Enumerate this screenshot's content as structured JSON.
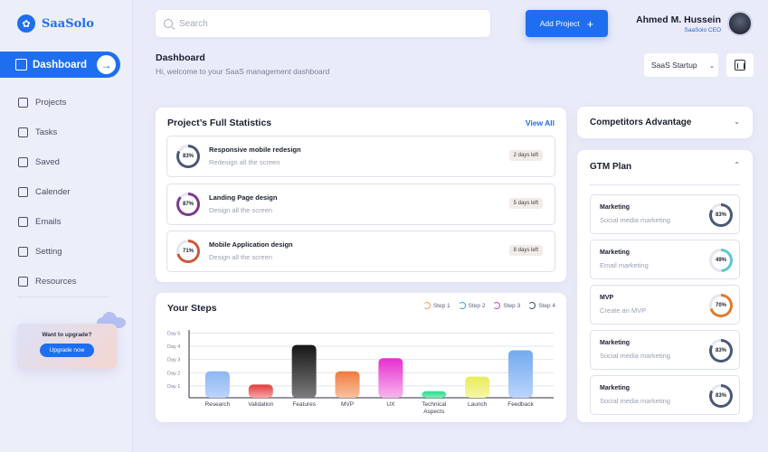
{
  "app": {
    "name": "SaaSolo"
  },
  "sidebar": {
    "active": "Dashboard",
    "items": [
      {
        "label": "Projects",
        "icon": "edit-icon"
      },
      {
        "label": "Tasks",
        "icon": "chart-icon"
      },
      {
        "label": "Saved",
        "icon": "document-icon"
      },
      {
        "label": "Calender",
        "icon": "calendar-icon"
      },
      {
        "label": "Emails",
        "icon": "mail-icon"
      },
      {
        "label": "Setting",
        "icon": "gear-icon"
      },
      {
        "label": "Resources",
        "icon": "check-icon"
      }
    ],
    "upgrade": {
      "title": "Want to upgrade?",
      "button": "Upgrade now"
    }
  },
  "header": {
    "search_placeholder": "Search",
    "add_project": "Add Project",
    "user_name": "Ahmed M. Hussein",
    "user_role": "SaaSolo CEO"
  },
  "page": {
    "title": "Dashboard",
    "subtitle": "Hi, welcome to your SaaS management dashboard",
    "select_value": "SaaS Startup"
  },
  "stats": {
    "title": "Project’s Full Statistics",
    "view_all": "View All",
    "projects": [
      {
        "name": "Responsive mobile redesign",
        "sub": "Redesign all the screen",
        "percent": "83%",
        "value": 83,
        "color": "#4a5876",
        "badge": "2 days left"
      },
      {
        "name": "Landing Page design",
        "sub": "Design all the screen",
        "percent": "87%",
        "value": 87,
        "color": "#7b3a8f",
        "badge": "5 days left"
      },
      {
        "name": "Mobile Application design",
        "sub": "Design all the screen",
        "percent": "71%",
        "value": 71,
        "color": "#c95a3a",
        "badge": "8 days left"
      }
    ]
  },
  "steps": {
    "title": "Your Steps",
    "legend": [
      {
        "label": "Step 1",
        "color": "#f2a44a"
      },
      {
        "label": "Step 2",
        "color": "#3aa0e0"
      },
      {
        "label": "Step 3",
        "color": "#d63ab8"
      },
      {
        "label": "Step 4",
        "color": "#3b4a6a"
      }
    ]
  },
  "chart_data": {
    "type": "bar",
    "categories": [
      "Research",
      "Validation",
      "Features",
      "MVP",
      "UX",
      "Technical Aspects",
      "Launch",
      "Feedback"
    ],
    "category_lines": [
      [
        "Research"
      ],
      [
        "Validation"
      ],
      [
        "Features"
      ],
      [
        "MVP"
      ],
      [
        "UX"
      ],
      [
        "Technical",
        "Aspects"
      ],
      [
        "Launch"
      ],
      [
        "Feedback"
      ]
    ],
    "values": [
      2.0,
      1.0,
      4.0,
      2.0,
      3.0,
      0.5,
      1.6,
      3.6
    ],
    "colors": [
      [
        "#bcd4fb",
        "#8db6f3"
      ],
      [
        "#f7a6a6",
        "#e53a3a"
      ],
      [
        "#7c7c7c",
        "#161616"
      ],
      [
        "#f8c3a0",
        "#f07a40"
      ],
      [
        "#f7b6ec",
        "#e62fd0"
      ],
      [
        "#7bf0b6",
        "#2bd98a"
      ],
      [
        "#f6f7a8",
        "#e8ec5a"
      ],
      [
        "#bad5fb",
        "#73aaf0"
      ]
    ],
    "yticks": [
      "Day 1",
      "Day 2",
      "Day 3",
      "Day 4",
      "Day 5"
    ],
    "ylim": [
      0,
      5
    ]
  },
  "competitors": {
    "title": "Competitors Advantage"
  },
  "gtm": {
    "title": "GTM Plan",
    "items": [
      {
        "name": "Marketing",
        "sub": "Social media marketing",
        "percent": "83%",
        "value": 83,
        "color": "#4a5876"
      },
      {
        "name": "Marketing",
        "sub": "Email marketing",
        "percent": "49%",
        "value": 49,
        "color": "#5cc6d6"
      },
      {
        "name": "MVP",
        "sub": "Create an MVP",
        "percent": "70%",
        "value": 70,
        "color": "#e07a2c"
      },
      {
        "name": "Marketing",
        "sub": "Social media marketing",
        "percent": "83%",
        "value": 83,
        "color": "#4a5876"
      },
      {
        "name": "Marketing",
        "sub": "Social media marketing",
        "percent": "83%",
        "value": 83,
        "color": "#4a5876"
      }
    ]
  }
}
